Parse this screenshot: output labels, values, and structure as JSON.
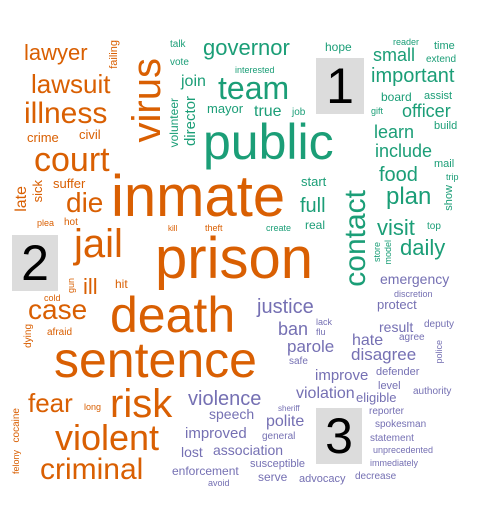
{
  "colors": {
    "cluster_1": "#1b9e77",
    "cluster_2": "#d95f02",
    "cluster_3": "#7570b3",
    "badge_bg": "#dcdcdc"
  },
  "badges": [
    "1",
    "2",
    "3"
  ],
  "words": {
    "prison": "prison",
    "inmate": "inmate",
    "death": "death",
    "sentence": "sentence",
    "public": "public",
    "virus": "virus",
    "contact": "contact",
    "jail": "jail",
    "court": "court",
    "illness": "illness",
    "team": "team",
    "violent": "violent",
    "criminal": "criminal",
    "risk": "risk",
    "lawsuit": "lawsuit",
    "lawyer": "lawyer",
    "case": "case",
    "die": "die",
    "fear": "fear",
    "governor": "governor",
    "important": "important",
    "daily": "daily",
    "visit": "visit",
    "plan": "plan",
    "food": "food",
    "include": "include",
    "learn": "learn",
    "officer": "officer",
    "small": "small",
    "justice": "justice",
    "violence": "violence",
    "full": "full",
    "director": "director",
    "ill": "ill",
    "ban": "ban",
    "parole": "parole",
    "disagree": "disagree",
    "improve": "improve",
    "violation": "violation",
    "improved": "improved",
    "association": "association",
    "speech": "speech",
    "polite": "polite",
    "lost": "lost",
    "enforcement": "enforcement",
    "susceptible": "susceptible",
    "serve": "serve",
    "advocacy": "advocacy",
    "decrease": "decrease",
    "avoid": "avoid",
    "general": "general",
    "sheriff": "sheriff",
    "eligible": "eligible",
    "level": "level",
    "defender": "defender",
    "hate": "hate",
    "result": "result",
    "agree": "agree",
    "deputy": "deputy",
    "protect": "protect",
    "discretion": "discretion",
    "emergency": "emergency",
    "authority": "authority",
    "police": "police",
    "reporter": "reporter",
    "spokesman": "spokesman",
    "statement": "statement",
    "unprecedented": "unprecedented",
    "immediately": "immediately",
    "safe": "safe",
    "lack": "lack",
    "flu": "flu",
    "talk": "talk",
    "vote": "vote",
    "hope": "hope",
    "reader": "reader",
    "time": "time",
    "extend": "extend",
    "interested": "interested",
    "join": "join",
    "mayor": "mayor",
    "true": "true",
    "job": "job",
    "volunteer": "volunteer",
    "board": "board",
    "assist": "assist",
    "gift": "gift",
    "build": "build",
    "mail": "mail",
    "trip": "trip",
    "show": "show",
    "top": "top",
    "start": "start",
    "real": "real",
    "create": "create",
    "store": "store",
    "model": "model",
    "theft": "theft",
    "kill": "kill",
    "crime": "crime",
    "civil": "civil",
    "suffer": "suffer",
    "sick": "sick",
    "late": "late",
    "plea": "plea",
    "hot": "hot",
    "cold": "cold",
    "gun": "gun",
    "hit": "hit",
    "dying": "dying",
    "afraid": "afraid",
    "long": "long",
    "cocaine": "cocaine",
    "felony": "felony",
    "failing": "failing"
  }
}
